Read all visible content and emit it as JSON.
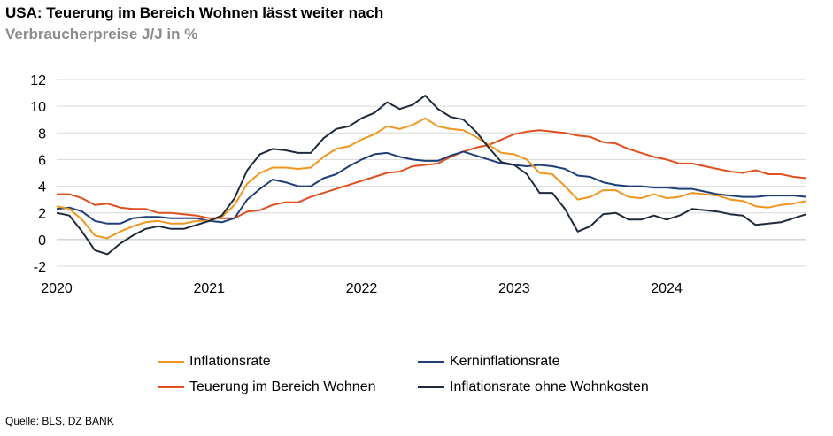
{
  "header": {
    "title": "USA: Teuerung im Bereich Wohnen lässt weiter nach",
    "subtitle": "Verbraucherpreise J/J in %"
  },
  "footer": {
    "source": "Quelle: BLS, DZ BANK"
  },
  "chart_data": {
    "type": "line",
    "title": "USA: Teuerung im Bereich Wohnen lässt weiter nach",
    "subtitle": "Verbraucherpreise J/J in %",
    "xlabel": "",
    "ylabel": "",
    "x_start": "2020-01",
    "x_end": "2024-12",
    "xlim": [
      "2020-01",
      "2024-12"
    ],
    "ylim": [
      -2,
      12
    ],
    "yticks": [
      "12",
      "10",
      "8",
      "6",
      "4",
      "2",
      "0",
      "-2"
    ],
    "ytick_values": [
      12,
      10,
      8,
      6,
      4,
      2,
      0,
      -2
    ],
    "xticks": [
      {
        "label": "2020",
        "x": "2020-01"
      },
      {
        "label": "2021",
        "x": "2021-01"
      },
      {
        "label": "2022",
        "x": "2022-01"
      },
      {
        "label": "2023",
        "x": "2023-01"
      },
      {
        "label": "2024",
        "x": "2024-01"
      }
    ],
    "grid": "horizontal",
    "legend_position": "bottom",
    "series": [
      {
        "name": "Inflationsrate",
        "color": "#f0961e",
        "values": [
          2.5,
          2.3,
          1.5,
          0.3,
          0.1,
          0.6,
          1.0,
          1.3,
          1.4,
          1.2,
          1.2,
          1.4,
          1.4,
          1.7,
          2.6,
          4.2,
          5.0,
          5.4,
          5.4,
          5.3,
          5.4,
          6.2,
          6.8,
          7.0,
          7.5,
          7.9,
          8.5,
          8.3,
          8.6,
          9.1,
          8.5,
          8.3,
          8.2,
          7.7,
          7.1,
          6.5,
          6.4,
          6.0,
          5.0,
          4.9,
          4.0,
          3.0,
          3.2,
          3.7,
          3.7,
          3.2,
          3.1,
          3.4,
          3.1,
          3.2,
          3.5,
          3.4,
          3.3,
          3.0,
          2.9,
          2.5,
          2.4,
          2.6,
          2.7,
          2.9
        ]
      },
      {
        "name": "Kerninflationsrate",
        "color": "#1f3f7a",
        "values": [
          2.3,
          2.4,
          2.1,
          1.4,
          1.2,
          1.2,
          1.6,
          1.7,
          1.7,
          1.6,
          1.6,
          1.6,
          1.4,
          1.3,
          1.6,
          3.0,
          3.8,
          4.5,
          4.3,
          4.0,
          4.0,
          4.6,
          4.9,
          5.5,
          6.0,
          6.4,
          6.5,
          6.2,
          6.0,
          5.9,
          5.9,
          6.3,
          6.6,
          6.3,
          6.0,
          5.7,
          5.6,
          5.5,
          5.6,
          5.5,
          5.3,
          4.8,
          4.7,
          4.3,
          4.1,
          4.0,
          4.0,
          3.9,
          3.9,
          3.8,
          3.8,
          3.6,
          3.4,
          3.3,
          3.2,
          3.2,
          3.3,
          3.3,
          3.3,
          3.2
        ]
      },
      {
        "name": "Teuerung im Bereich Wohnen",
        "color": "#e0501e",
        "values": [
          3.4,
          3.4,
          3.1,
          2.6,
          2.7,
          2.4,
          2.3,
          2.3,
          2.0,
          2.0,
          1.9,
          1.8,
          1.6,
          1.6,
          1.6,
          2.1,
          2.2,
          2.6,
          2.8,
          2.8,
          3.2,
          3.5,
          3.8,
          4.1,
          4.4,
          4.7,
          5.0,
          5.1,
          5.5,
          5.6,
          5.7,
          6.2,
          6.6,
          6.9,
          7.1,
          7.5,
          7.9,
          8.1,
          8.2,
          8.1,
          8.0,
          7.8,
          7.7,
          7.3,
          7.2,
          6.8,
          6.5,
          6.2,
          6.0,
          5.7,
          5.7,
          5.5,
          5.3,
          5.1,
          5.0,
          5.2,
          4.9,
          4.9,
          4.7,
          4.6
        ]
      },
      {
        "name": "Inflationsrate ohne Wohnkosten",
        "color": "#1e2b3c",
        "values": [
          2.0,
          1.8,
          0.6,
          -0.8,
          -1.1,
          -0.3,
          0.3,
          0.8,
          1.0,
          0.8,
          0.8,
          1.1,
          1.4,
          1.8,
          3.1,
          5.2,
          6.4,
          6.8,
          6.7,
          6.5,
          6.5,
          7.6,
          8.3,
          8.5,
          9.1,
          9.5,
          10.3,
          9.8,
          10.1,
          10.8,
          9.8,
          9.2,
          9.0,
          8.1,
          6.9,
          5.8,
          5.6,
          4.9,
          3.5,
          3.5,
          2.3,
          0.6,
          1.0,
          1.9,
          2.0,
          1.5,
          1.5,
          1.8,
          1.5,
          1.8,
          2.3,
          2.2,
          2.1,
          1.9,
          1.8,
          1.1,
          1.2,
          1.3,
          1.6,
          1.9
        ]
      }
    ]
  }
}
